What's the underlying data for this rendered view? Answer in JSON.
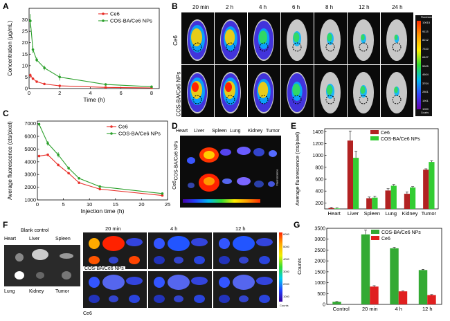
{
  "panels": {
    "A": {
      "letter": "A"
    },
    "B": {
      "letter": "B",
      "times": [
        "20 min",
        "2 h",
        "4 h",
        "6 h",
        "8 h",
        "12 h",
        "24 h"
      ],
      "rows": [
        "Ce6",
        "COS-BA/Ce6 NPs"
      ],
      "colorbar": {
        "title": "Fluorescence",
        "ticks": [
          "10015",
          "9113",
          "8212",
          "7310",
          "6407",
          "5505",
          "4604",
          "3704",
          "2801",
          "1901",
          "1000"
        ],
        "unit": "Counts"
      }
    },
    "C": {
      "letter": "C"
    },
    "D": {
      "letter": "D",
      "organs": [
        "Heart",
        "Liver",
        "Spleen",
        "Lung",
        "Kidney",
        "Tumor"
      ],
      "rows": [
        "COS-BA/Ce6 NPs",
        "Ce6"
      ],
      "bar_label": "Fluorescence"
    },
    "E": {
      "letter": "E"
    },
    "F": {
      "letter": "F",
      "blank_title": "Blank control",
      "organs_top": [
        "Heart",
        "Liver",
        "Spleen"
      ],
      "organs_bottom": [
        "Lung",
        "Kidney",
        "Tumor"
      ],
      "times": [
        "20 min",
        "4 h",
        "12 h"
      ],
      "rows": [
        "COS-BA/Ce6 NPs",
        "Ce6"
      ],
      "colorbar_ticks": [
        "6000",
        "5000",
        "4000",
        "3000",
        "2000",
        "1000"
      ],
      "unit": "Counts"
    },
    "G": {
      "letter": "G"
    }
  },
  "chart_data": [
    {
      "id": "A",
      "type": "line",
      "xlabel": "Time (h)",
      "ylabel": "Concentration (μg/mL)",
      "xlim": [
        0,
        8.5
      ],
      "ylim": [
        0,
        35
      ],
      "xticks": [
        0,
        2,
        4,
        6,
        8
      ],
      "yticks": [
        0,
        5,
        10,
        15,
        20,
        25,
        30
      ],
      "legend": "top-right",
      "series": [
        {
          "name": "Ce6",
          "color": "#e8302a",
          "x": [
            0.083,
            0.25,
            0.5,
            1,
            2,
            5,
            8
          ],
          "y": [
            5.8,
            4.3,
            3.0,
            2.0,
            1.2,
            0.5,
            0.3
          ],
          "err": [
            0.8,
            0.5,
            0.3,
            0.2,
            0.2,
            0.1,
            0.1
          ]
        },
        {
          "name": "COS-BA/Ce6 NPs",
          "color": "#2ca02c",
          "x": [
            0.083,
            0.25,
            0.5,
            1,
            2,
            5,
            8
          ],
          "y": [
            29.5,
            17,
            12.5,
            9,
            5,
            1.8,
            0.8
          ],
          "err": [
            3,
            1.5,
            1,
            1,
            1.5,
            0.5,
            0.3
          ]
        }
      ]
    },
    {
      "id": "C",
      "type": "line",
      "xlabel": "Injection time (h)",
      "ylabel": "Average fluorescence (cts/pixel)",
      "xlim": [
        0,
        25
      ],
      "ylim": [
        1000,
        7200
      ],
      "xticks": [
        0,
        5,
        10,
        15,
        20,
        25
      ],
      "yticks": [
        1000,
        2000,
        3000,
        4000,
        5000,
        6000,
        7000
      ],
      "legend": "top-right",
      "series": [
        {
          "name": "Ce6",
          "color": "#e8302a",
          "x": [
            0.33,
            2,
            4,
            6,
            8,
            12,
            24
          ],
          "y": [
            4450,
            4550,
            3750,
            3100,
            2350,
            1850,
            1350
          ],
          "err": [
            60,
            80,
            100,
            80,
            70,
            60,
            60
          ]
        },
        {
          "name": "COS-BA/Ce6 NPs",
          "color": "#2ca02c",
          "x": [
            0.33,
            2,
            4,
            6,
            8,
            12,
            24
          ],
          "y": [
            6950,
            5450,
            4550,
            3500,
            2700,
            2050,
            1500
          ],
          "err": [
            100,
            180,
            200,
            120,
            90,
            80,
            70
          ]
        }
      ]
    },
    {
      "id": "E",
      "type": "bar",
      "ylabel": "Average fluorescence (cts/pixel)",
      "categories": [
        "Heart",
        "Liver",
        "Spleen",
        "Lung",
        "Kidney",
        "Tumor"
      ],
      "ylim": [
        100,
        1450
      ],
      "yticks": [
        200,
        400,
        600,
        800,
        1000,
        1200,
        1400
      ],
      "legend": "top-right",
      "series": [
        {
          "name": "Ce6",
          "color": "#b22222",
          "values": [
            115,
            1250,
            280,
            410,
            355,
            760
          ],
          "err": [
            10,
            160,
            20,
            30,
            30,
            15
          ]
        },
        {
          "name": "COS-BA/Ce6 NPs",
          "color": "#33cc33",
          "values": [
            108,
            960,
            290,
            490,
            460,
            890
          ],
          "err": [
            8,
            110,
            25,
            20,
            15,
            20
          ]
        }
      ]
    },
    {
      "id": "G",
      "type": "bar",
      "ylabel": "Counts",
      "categories": [
        "Control",
        "20 min",
        "4 h",
        "12 h"
      ],
      "ylim": [
        0,
        3500
      ],
      "yticks": [
        0,
        500,
        1000,
        1500,
        2000,
        2500,
        3000,
        3500
      ],
      "legend": "top-right",
      "series": [
        {
          "name": "COS-BA/Ce6 NPs",
          "color": "#33aa33",
          "values": [
            120,
            3220,
            2580,
            1580
          ],
          "err": [
            10,
            200,
            40,
            30
          ]
        },
        {
          "name": "Ce6",
          "color": "#e02020",
          "values": [
            null,
            820,
            600,
            430
          ],
          "err": [
            null,
            40,
            20,
            20
          ]
        }
      ]
    }
  ]
}
